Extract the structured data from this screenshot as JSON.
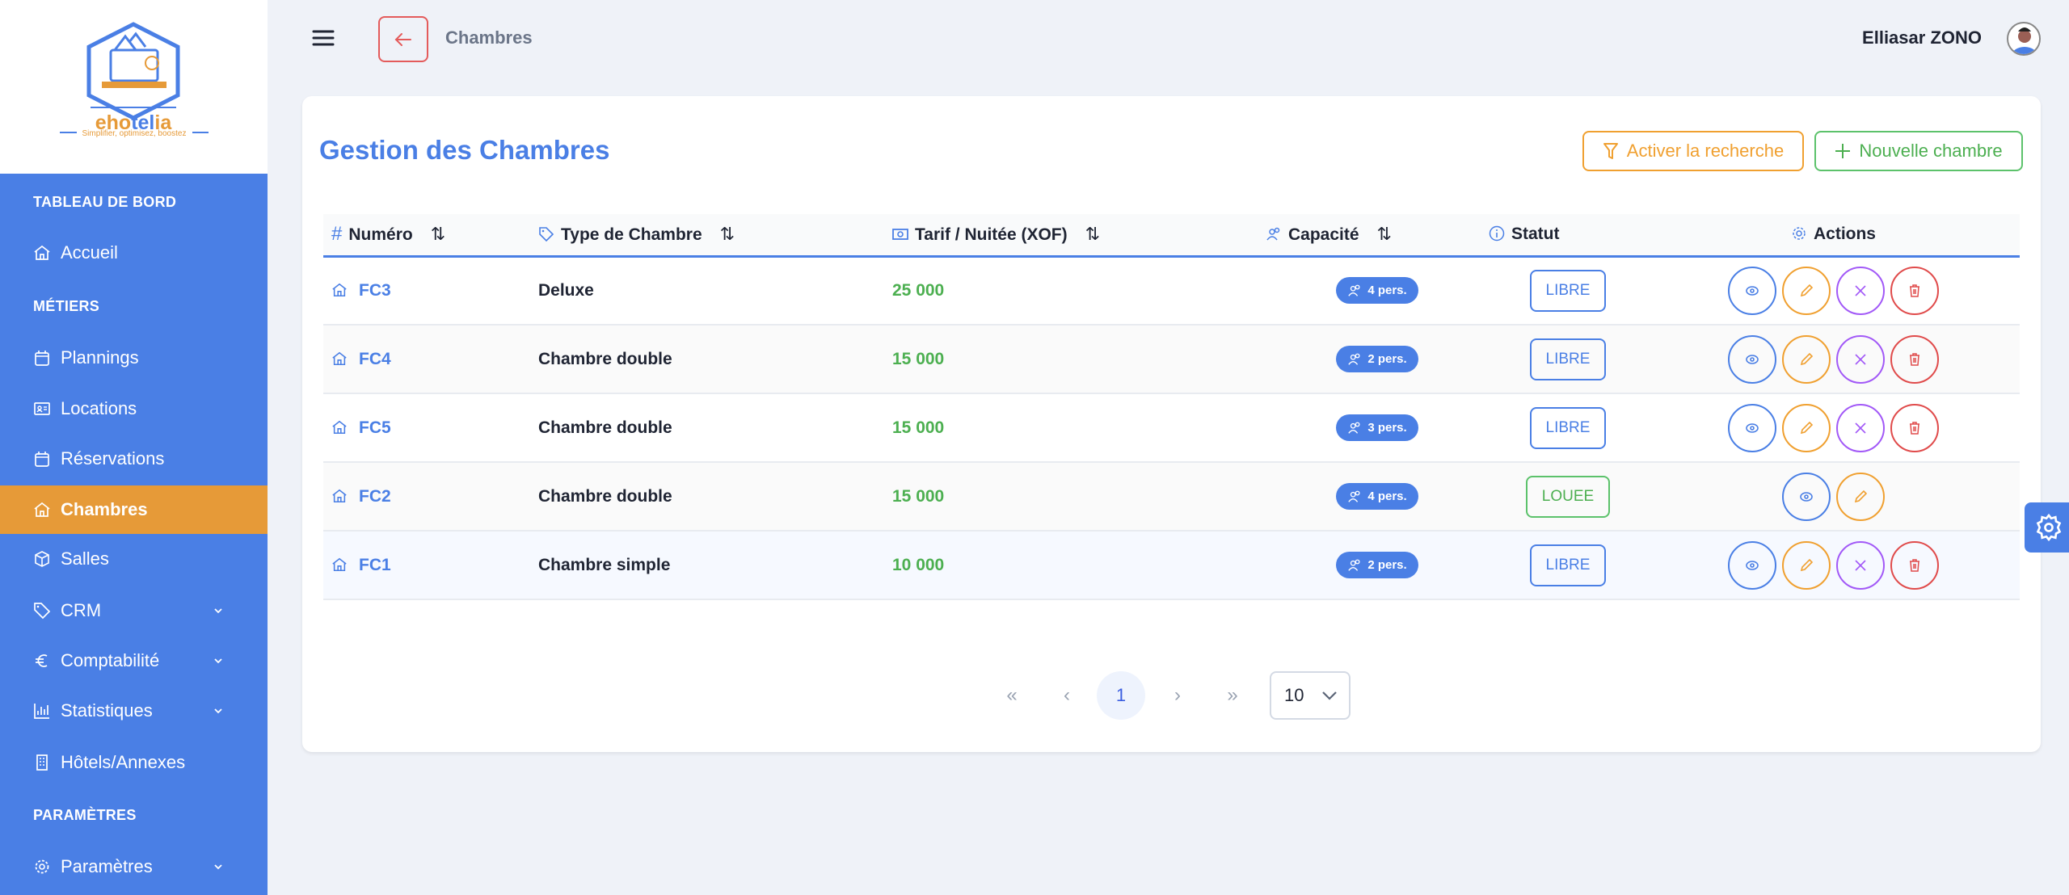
{
  "logo": {
    "brand": "ehotelia",
    "tagline": "Simplifier, optimisez, boostez"
  },
  "sidebar": {
    "sections": [
      {
        "label": "TABLEAU DE BORD"
      },
      {
        "label": "MÉTIERS"
      },
      {
        "label": "PARAMÈTRES"
      }
    ],
    "items": [
      {
        "label": "Accueil",
        "icon": "home-icon"
      },
      {
        "label": "Plannings",
        "icon": "calendar-icon"
      },
      {
        "label": "Locations",
        "icon": "id-card-icon"
      },
      {
        "label": "Réservations",
        "icon": "calendar-icon"
      },
      {
        "label": "Chambres",
        "icon": "home-icon",
        "active": true
      },
      {
        "label": "Salles",
        "icon": "box-icon"
      },
      {
        "label": "CRM",
        "icon": "tag-icon",
        "expandable": true
      },
      {
        "label": "Comptabilité",
        "icon": "euro-icon",
        "expandable": true
      },
      {
        "label": "Statistiques",
        "icon": "bar-chart-icon",
        "expandable": true
      },
      {
        "label": "Hôtels/Annexes",
        "icon": "building-icon"
      },
      {
        "label": "Paramètres",
        "icon": "gear-icon",
        "expandable": true
      }
    ]
  },
  "header": {
    "page": "Chambres",
    "user": "Elliasar ZONO"
  },
  "main": {
    "title": "Gestion des Chambres",
    "search_button": "Activer la recherche",
    "new_button": "Nouvelle chambre",
    "columns": [
      "Numéro",
      "Type de Chambre",
      "Tarif / Nuitée (XOF)",
      "Capacité",
      "Statut",
      "Actions"
    ],
    "rows": [
      {
        "numero": "FC3",
        "type": "Deluxe",
        "tarif": "25 000",
        "capacite": "4 pers.",
        "statut": "LIBRE"
      },
      {
        "numero": "FC4",
        "type": "Chambre double",
        "tarif": "15 000",
        "capacite": "2 pers.",
        "statut": "LIBRE"
      },
      {
        "numero": "FC5",
        "type": "Chambre double",
        "tarif": "15 000",
        "capacite": "3 pers.",
        "statut": "LIBRE"
      },
      {
        "numero": "FC2",
        "type": "Chambre double",
        "tarif": "15 000",
        "capacite": "4 pers.",
        "statut": "LOUEE"
      },
      {
        "numero": "FC1",
        "type": "Chambre simple",
        "tarif": "10 000",
        "capacite": "2 pers.",
        "statut": "LIBRE"
      }
    ],
    "pagination": {
      "current": "1",
      "per_page": "10"
    }
  },
  "colors": {
    "primary": "#4a7fe5",
    "active": "#e69a38",
    "green": "#4caf50",
    "purple": "#a259f7",
    "red": "#e04b4b",
    "orange": "#f0a030"
  }
}
